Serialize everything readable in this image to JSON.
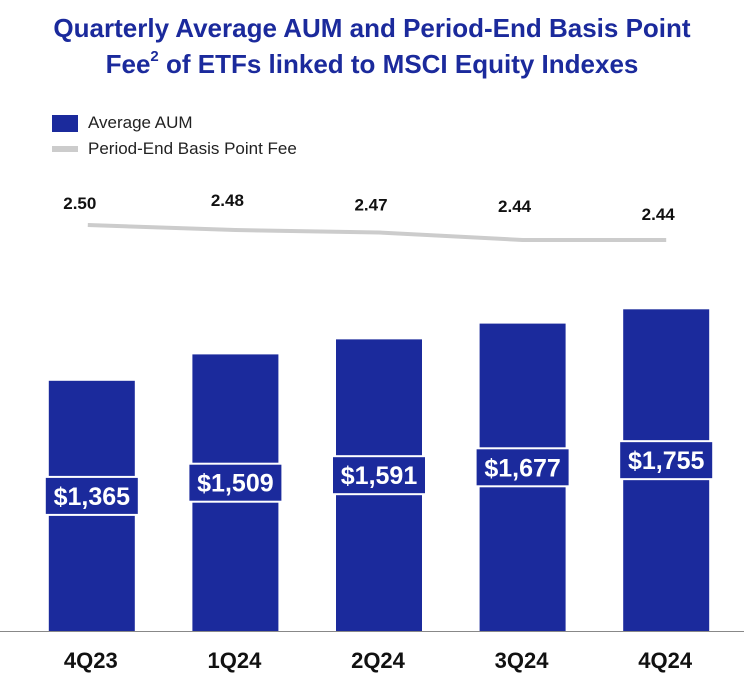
{
  "title": {
    "line1": "Quarterly Average AUM and Period-End Basis Point",
    "line2_pre": "Fee",
    "line2_sup": "2",
    "line2_post": " of ETFs linked to MSCI Equity Indexes"
  },
  "legend": {
    "bar_label": "Average AUM",
    "line_label": "Period-End Basis Point Fee"
  },
  "colors": {
    "bar": "#1b2a9c",
    "line": "#cccccc",
    "title": "#1b2a9c"
  },
  "chart_data": {
    "type": "bar",
    "categories": [
      "4Q23",
      "1Q24",
      "2Q24",
      "3Q24",
      "4Q24"
    ],
    "series": [
      {
        "name": "Average AUM",
        "type": "bar",
        "values": [
          1365,
          1509,
          1591,
          1677,
          1755
        ],
        "labels": [
          "$1,365",
          "$1,509",
          "$1,591",
          "$1,677",
          "$1,755"
        ]
      },
      {
        "name": "Period-End Basis Point Fee",
        "type": "line",
        "values": [
          2.5,
          2.48,
          2.47,
          2.44,
          2.44
        ],
        "labels": [
          "2.50",
          "2.48",
          "2.47",
          "2.44",
          "2.44"
        ]
      }
    ],
    "legend_position": "top-left",
    "grid": false
  }
}
